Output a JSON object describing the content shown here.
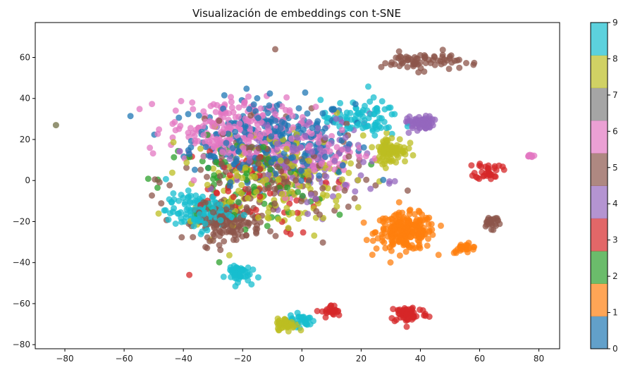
{
  "chart_data": {
    "type": "scatter",
    "title": "Visualización de embeddings con t-SNE",
    "xlabel": "",
    "ylabel": "",
    "xlim": [
      -90,
      87
    ],
    "ylim": [
      -82,
      77
    ],
    "xticks": [
      -80,
      -60,
      -40,
      -20,
      0,
      20,
      40,
      60,
      80
    ],
    "yticks": [
      -80,
      -60,
      -40,
      -20,
      0,
      20,
      40,
      60
    ],
    "xtick_labels": [
      "−80",
      "−60",
      "−40",
      "−20",
      "0",
      "20",
      "40",
      "60",
      "80"
    ],
    "ytick_labels": [
      "−80",
      "−60",
      "−40",
      "−20",
      "0",
      "20",
      "40",
      "60"
    ],
    "grid": false,
    "colormap": "tab10",
    "colorbar": {
      "ticks": [
        "0",
        "1",
        "2",
        "3",
        "4",
        "5",
        "6",
        "7",
        "8",
        "9"
      ],
      "colors": [
        "#1f77b4",
        "#ff7f0e",
        "#2ca02c",
        "#d62728",
        "#9467bd",
        "#8c564b",
        "#e377c2",
        "#7f7f7f",
        "#bcbd22",
        "#17becf"
      ]
    },
    "clusters": [
      {
        "label": 0,
        "center": [
          -10,
          20
        ],
        "spread": [
          25,
          18
        ],
        "count": 260
      },
      {
        "label": 1,
        "center": [
          35,
          -25
        ],
        "spread": [
          9,
          8
        ],
        "count": 230
      },
      {
        "label": 1,
        "center": [
          55,
          -33
        ],
        "spread": [
          4,
          2
        ],
        "count": 25
      },
      {
        "label": 2,
        "center": [
          -20,
          0
        ],
        "spread": [
          25,
          18
        ],
        "count": 90
      },
      {
        "label": 3,
        "center": [
          36,
          -65
        ],
        "spread": [
          6,
          4
        ],
        "count": 60
      },
      {
        "label": 3,
        "center": [
          10,
          -64
        ],
        "spread": [
          3,
          3
        ],
        "count": 25
      },
      {
        "label": 3,
        "center": [
          63,
          5
        ],
        "spread": [
          4,
          4
        ],
        "count": 35
      },
      {
        "label": 3,
        "center": [
          -20,
          -5
        ],
        "spread": [
          25,
          20
        ],
        "count": 60
      },
      {
        "label": 4,
        "center": [
          40,
          28
        ],
        "spread": [
          4,
          3
        ],
        "count": 70
      },
      {
        "label": 4,
        "center": [
          0,
          10
        ],
        "spread": [
          25,
          20
        ],
        "count": 140
      },
      {
        "label": 5,
        "center": [
          -25,
          -20
        ],
        "spread": [
          10,
          8
        ],
        "count": 160
      },
      {
        "label": 5,
        "center": [
          40,
          58
        ],
        "spread": [
          12,
          4
        ],
        "count": 70
      },
      {
        "label": 5,
        "center": [
          64,
          -20
        ],
        "spread": [
          3,
          3
        ],
        "count": 25
      },
      {
        "label": 5,
        "center": [
          -10,
          0
        ],
        "spread": [
          28,
          22
        ],
        "count": 140
      },
      {
        "label": 6,
        "center": [
          -25,
          25
        ],
        "spread": [
          18,
          14
        ],
        "count": 220
      },
      {
        "label": 6,
        "center": [
          0,
          15
        ],
        "spread": [
          20,
          18
        ],
        "count": 120
      },
      {
        "label": 6,
        "center": [
          77,
          12
        ],
        "spread": [
          1.5,
          0.8
        ],
        "count": 10
      },
      {
        "label": 8,
        "center": [
          -5,
          -70
        ],
        "spread": [
          3,
          2.5
        ],
        "count": 60
      },
      {
        "label": 8,
        "center": [
          30,
          15
        ],
        "spread": [
          5,
          6
        ],
        "count": 90
      },
      {
        "label": 8,
        "center": [
          -10,
          0
        ],
        "spread": [
          25,
          22
        ],
        "count": 170
      },
      {
        "label": 9,
        "center": [
          -35,
          -15
        ],
        "spread": [
          10,
          8
        ],
        "count": 120
      },
      {
        "label": 9,
        "center": [
          -22,
          -45
        ],
        "spread": [
          4,
          4
        ],
        "count": 50
      },
      {
        "label": 9,
        "center": [
          0,
          -68
        ],
        "spread": [
          4,
          3
        ],
        "count": 30
      },
      {
        "label": 9,
        "center": [
          20,
          30
        ],
        "spread": [
          12,
          8
        ],
        "count": 80
      }
    ],
    "outliers": [
      {
        "label": 8,
        "x": -83,
        "y": 27
      },
      {
        "label": 3,
        "x": -38,
        "y": -46
      },
      {
        "label": 5,
        "x": -9,
        "y": 64
      },
      {
        "label": 7,
        "x": -83,
        "y": 27
      }
    ]
  }
}
